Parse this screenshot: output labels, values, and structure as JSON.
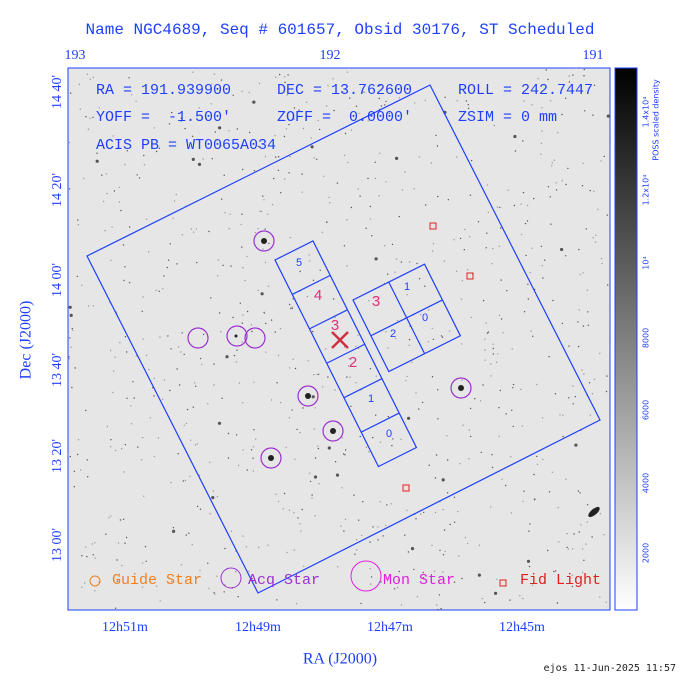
{
  "header": {
    "title": "Name NGC4689, Seq # 601657, Obsid 30176, ST Scheduled"
  },
  "axes": {
    "top_ticks": [
      "193",
      "192",
      "191"
    ],
    "left_ticks": [
      "14 40'",
      "14 20'",
      "14 00'",
      "13 40'",
      "13 20'",
      "13 00'"
    ],
    "left_label": "Dec (J2000)",
    "bottom_ticks": [
      "12h51m",
      "12h49m",
      "12h47m",
      "12h45m"
    ],
    "bottom_label": "RA (J2000)"
  },
  "info": [
    [
      "RA = 191.939900",
      "DEC = 13.762600",
      "ROLL = 242.7447"
    ],
    [
      "YOFF =  -1.500'",
      "ZOFF =  0.0000'",
      "ZSIM = 0 mm"
    ],
    [
      "ACIS PB = WT0065A034"
    ]
  ],
  "chips": {
    "s_array": [
      "5",
      "4",
      "3",
      "2",
      "1",
      "0"
    ],
    "i_array": [
      "1",
      "0",
      "2",
      "3"
    ]
  },
  "colorbar": {
    "labels": [
      "2000",
      "4000",
      "6000",
      "8000",
      "10⁴",
      "1.2x10⁴",
      "1.4x10⁴"
    ],
    "title": "POSS scaled density"
  },
  "legend": [
    "Guide Star",
    "Acq Star",
    "Mon Star",
    "Fid Light"
  ],
  "footer": "ejos 11-Jun-2025 11:57"
}
